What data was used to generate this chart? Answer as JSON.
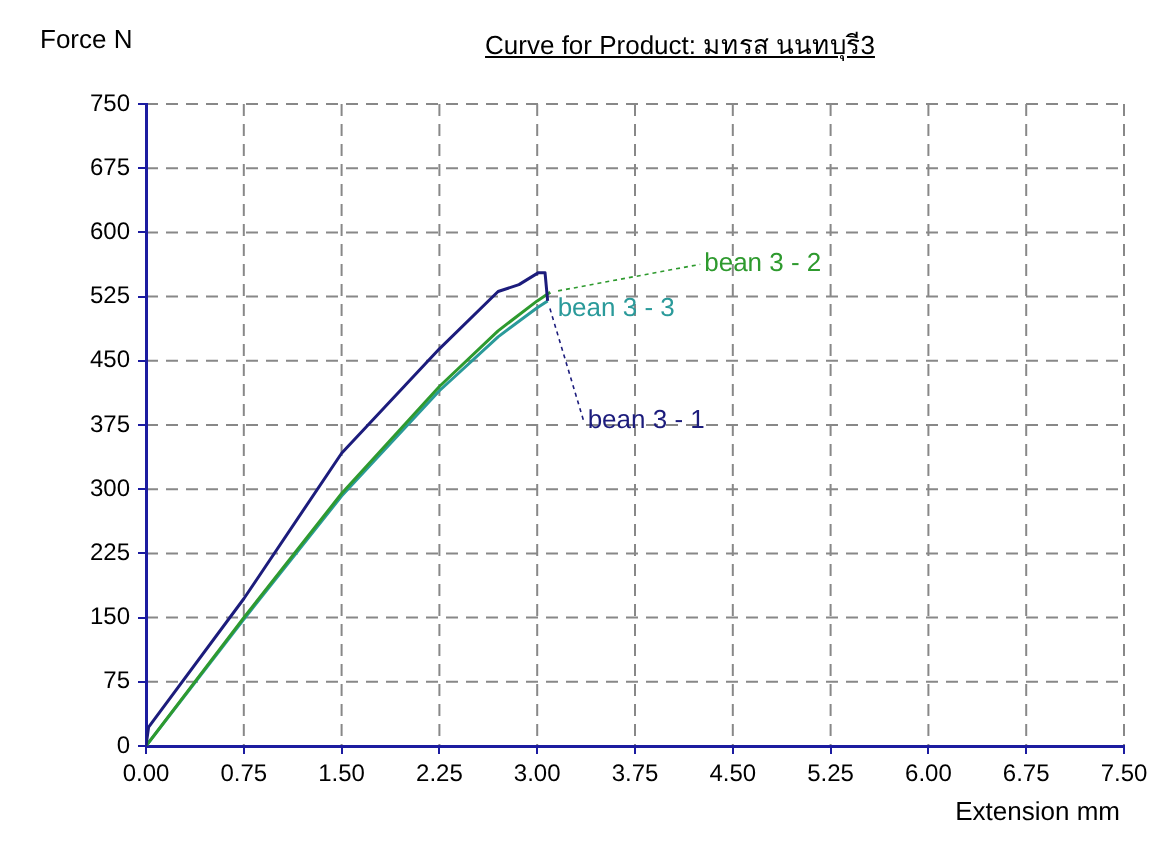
{
  "chart_data": {
    "type": "line",
    "title": "Curve for Product: มทรส นนทบุรี3",
    "xlabel": "Extension mm",
    "ylabel": "Force N",
    "xlim": [
      0,
      7.5
    ],
    "xticks": [
      {
        "value": 0,
        "label": "0.00"
      },
      {
        "value": 0.75,
        "label": "0.75"
      },
      {
        "value": 1.5,
        "label": "1.50"
      },
      {
        "value": 2.25,
        "label": "2.25"
      },
      {
        "value": 3,
        "label": "3.00"
      },
      {
        "value": 3.75,
        "label": "3.75"
      },
      {
        "value": 4.5,
        "label": "4.50"
      },
      {
        "value": 5.25,
        "label": "5.25"
      },
      {
        "value": 6,
        "label": "6.00"
      },
      {
        "value": 6.75,
        "label": "6.75"
      },
      {
        "value": 7.5,
        "label": "7.50"
      }
    ],
    "ylim": [
      0,
      750
    ],
    "yticks": [
      0,
      75,
      150,
      225,
      300,
      375,
      450,
      525,
      600,
      675,
      750
    ],
    "grid": true,
    "legend": false,
    "marker": "none",
    "line_style": "solid",
    "series": [
      {
        "name": "bean 3 - 1",
        "color": "#1c1c7c",
        "x": [
          0,
          0.02,
          0.75,
          1.5,
          2.25,
          2.7,
          2.86,
          3.01,
          3.06,
          3.08
        ],
        "values": [
          0,
          22,
          172,
          342,
          464,
          531,
          539,
          553,
          553,
          520
        ]
      },
      {
        "name": "bean 3 - 2",
        "color": "#2e9a2e",
        "x": [
          0,
          0.75,
          1.5,
          2.25,
          2.7,
          3.0,
          3.1
        ],
        "values": [
          0,
          150,
          295,
          420,
          485,
          520,
          530
        ]
      },
      {
        "name": "bean 3 - 3",
        "color": "#2a9a9a",
        "x": [
          0,
          0.75,
          1.5,
          2.25,
          2.7,
          3.0,
          3.08
        ],
        "values": [
          0,
          148,
          292,
          415,
          478,
          512,
          520
        ]
      }
    ]
  }
}
